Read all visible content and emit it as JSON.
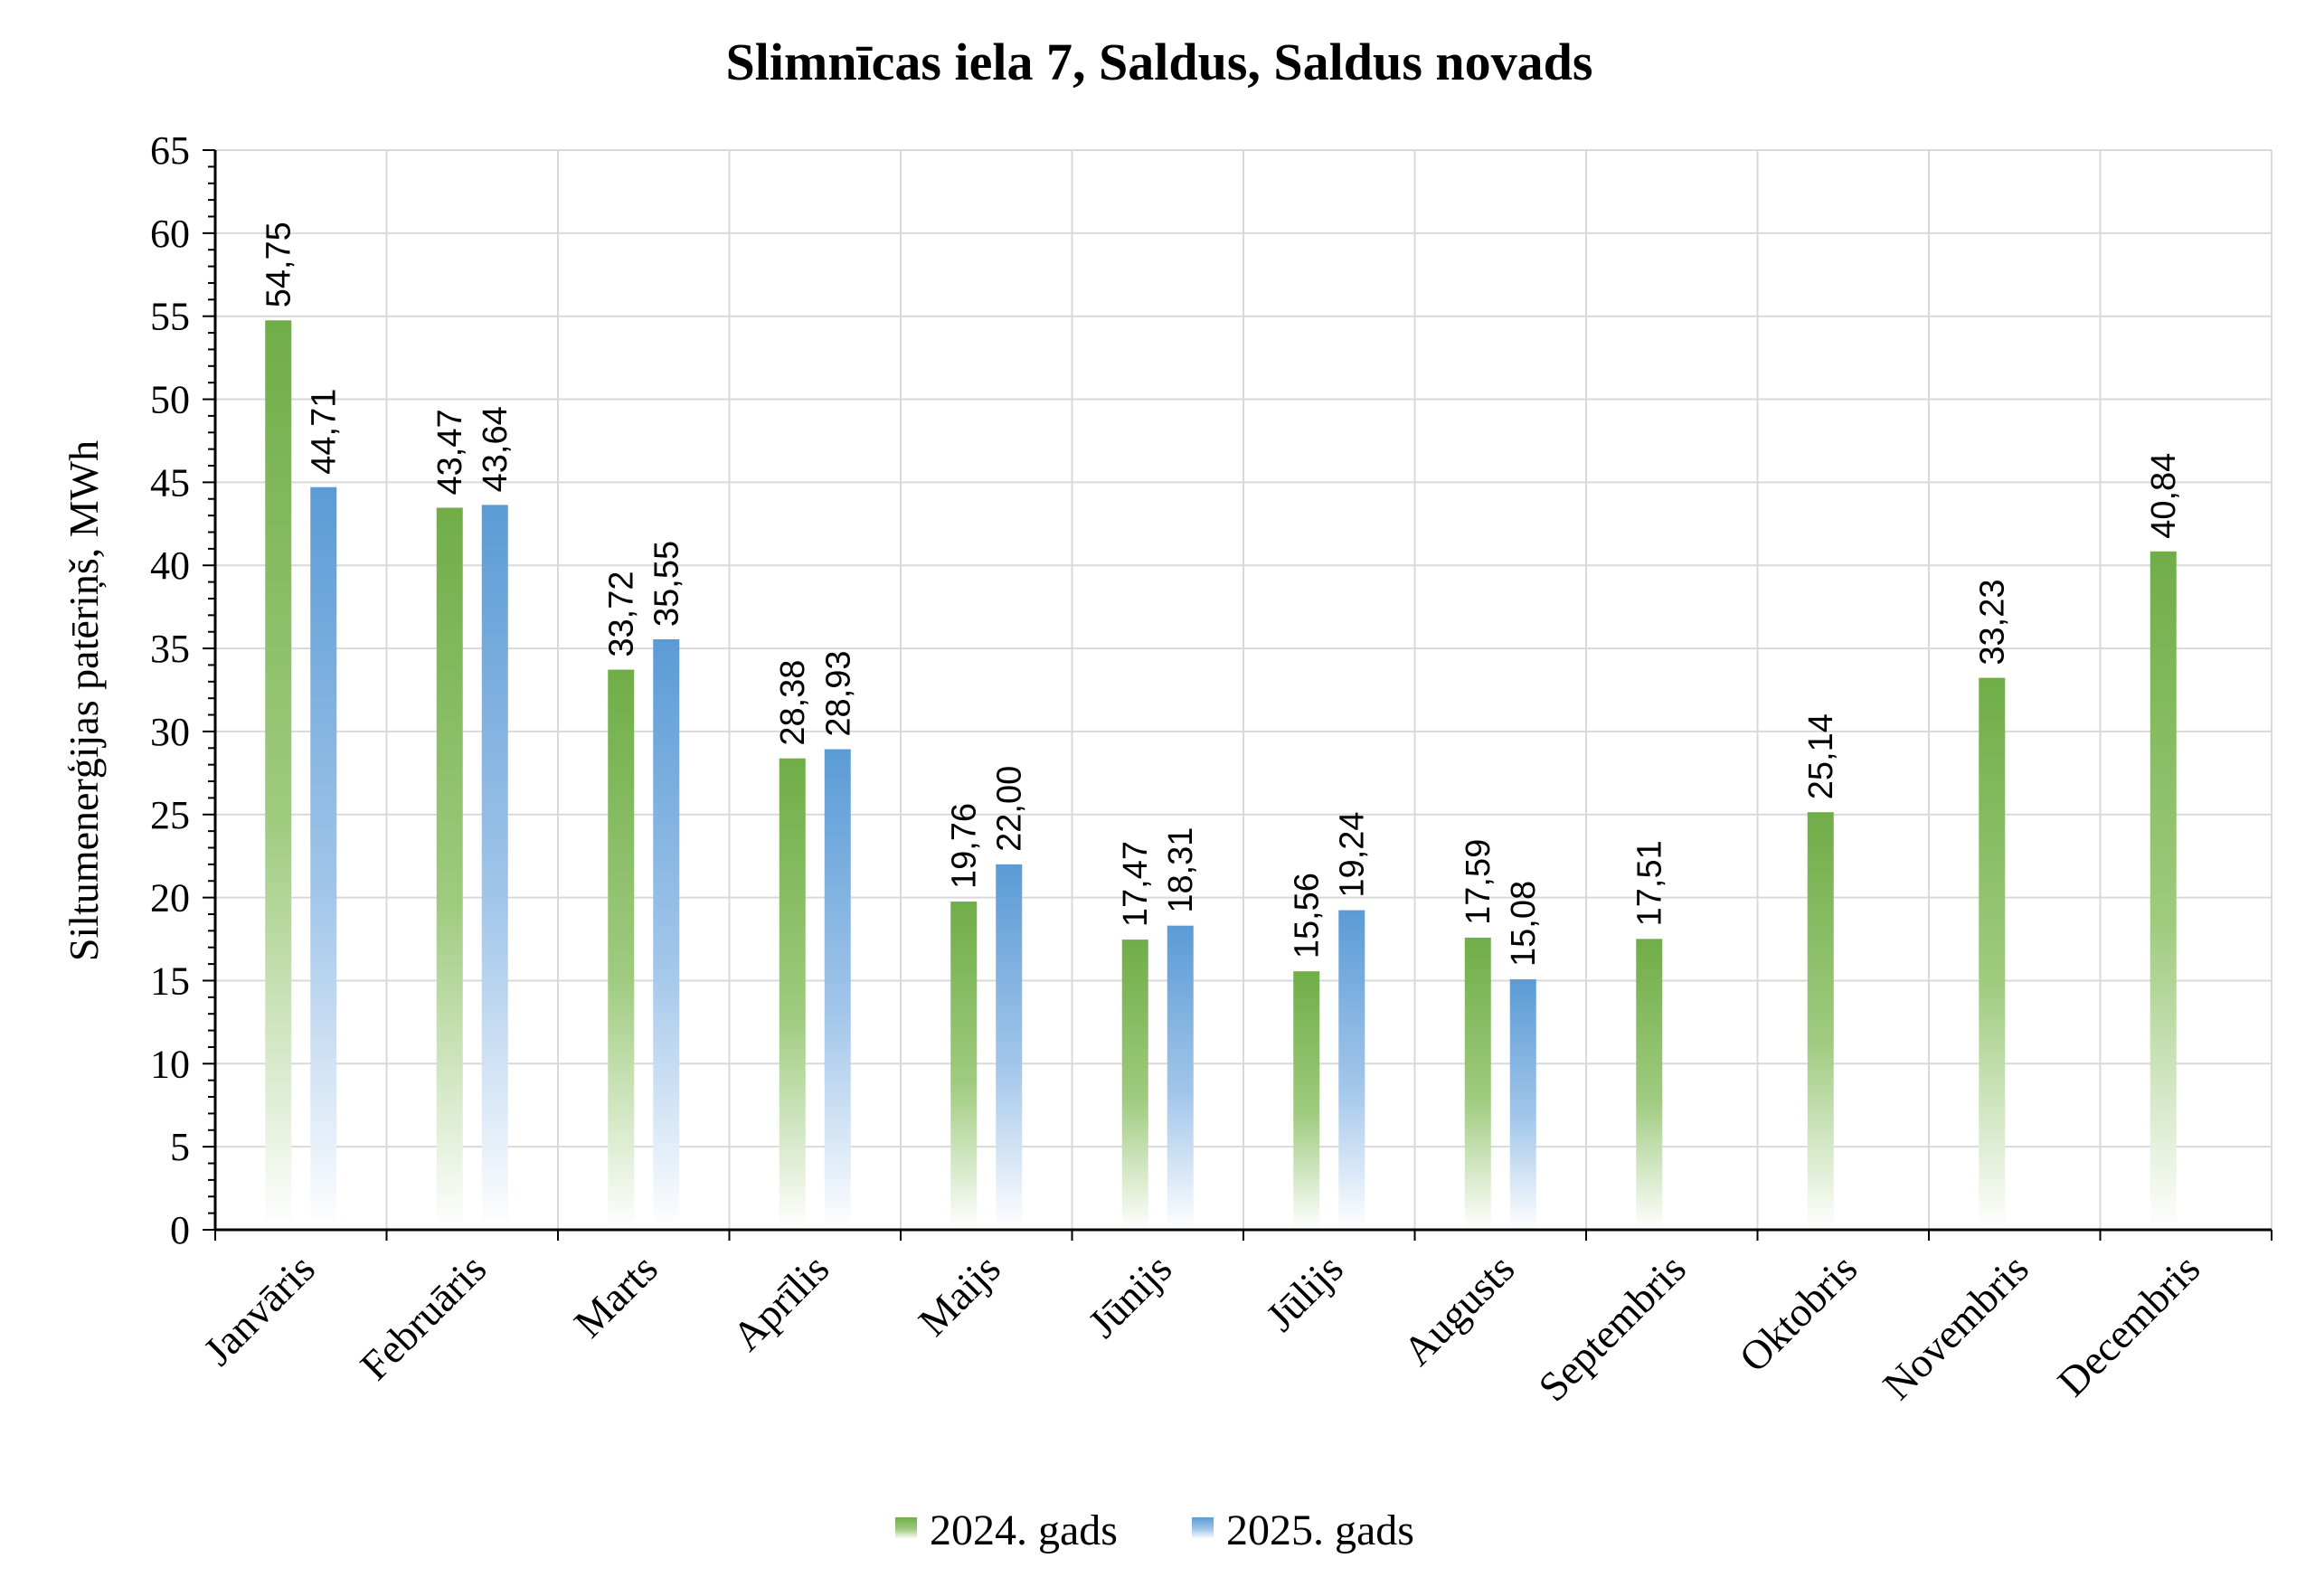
{
  "chart_data": {
    "type": "bar",
    "title": "Slimnīcas iela 7, Saldus, Saldus novads",
    "xlabel": "",
    "ylabel": "Siltumenerģijas patēriņš, MWh",
    "ylim": [
      0,
      65
    ],
    "yticks": [
      0,
      5,
      10,
      15,
      20,
      25,
      30,
      35,
      40,
      45,
      50,
      55,
      60,
      65
    ],
    "grid": true,
    "legend_position": "bottom",
    "categories": [
      "Janvāris",
      "Februāris",
      "Marts",
      "Aprīlis",
      "Maijs",
      "Jūnijs",
      "Jūlijs",
      "Augusts",
      "Septembris",
      "Oktobris",
      "Novembris",
      "Decembris"
    ],
    "series": [
      {
        "name": "2024. gads",
        "color": "#70ad47",
        "values": [
          54.75,
          43.47,
          33.72,
          28.38,
          19.76,
          17.47,
          15.56,
          17.59,
          17.51,
          25.14,
          33.23,
          40.84
        ],
        "labels": [
          "54,75",
          "43,47",
          "33,72",
          "28,38",
          "19,76",
          "17,47",
          "15,56",
          "17,59",
          "17,51",
          "25,14",
          "33,23",
          "40,84"
        ]
      },
      {
        "name": "2025. gads",
        "color": "#5b9bd5",
        "values": [
          44.71,
          43.64,
          35.55,
          28.93,
          22.0,
          18.31,
          19.24,
          15.08,
          null,
          null,
          null,
          null
        ],
        "labels": [
          "44,71",
          "43,64",
          "35,55",
          "28,93",
          "22,00",
          "18,31",
          "19,24",
          "15,08",
          null,
          null,
          null,
          null
        ]
      }
    ]
  }
}
